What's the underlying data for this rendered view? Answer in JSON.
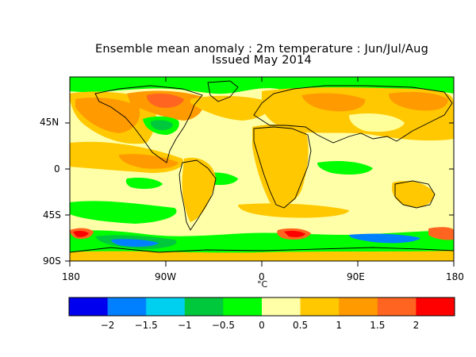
{
  "title": {
    "line1": "Ensemble mean anomaly : 2m temperature : Jun/Jul/Aug",
    "line2": "Issued May 2014"
  },
  "map": {
    "lat_labels": [
      "45N",
      "0",
      "45S",
      "90S"
    ],
    "lon_labels": [
      "180",
      "90W",
      "0",
      "90E",
      "180"
    ],
    "lon_unit": "°C"
  },
  "colorbar": {
    "colors": [
      "#0000ee",
      "#0080ff",
      "#00d0f0",
      "#00c83c",
      "#00ff00",
      "#ffffa8",
      "#ffc800",
      "#ff9a00",
      "#ff6420",
      "#ff0000"
    ],
    "labels": [
      "-2",
      "-1.5",
      "-1",
      "-0.5",
      "0",
      "0.5",
      "1",
      "1.5",
      "2"
    ]
  }
}
